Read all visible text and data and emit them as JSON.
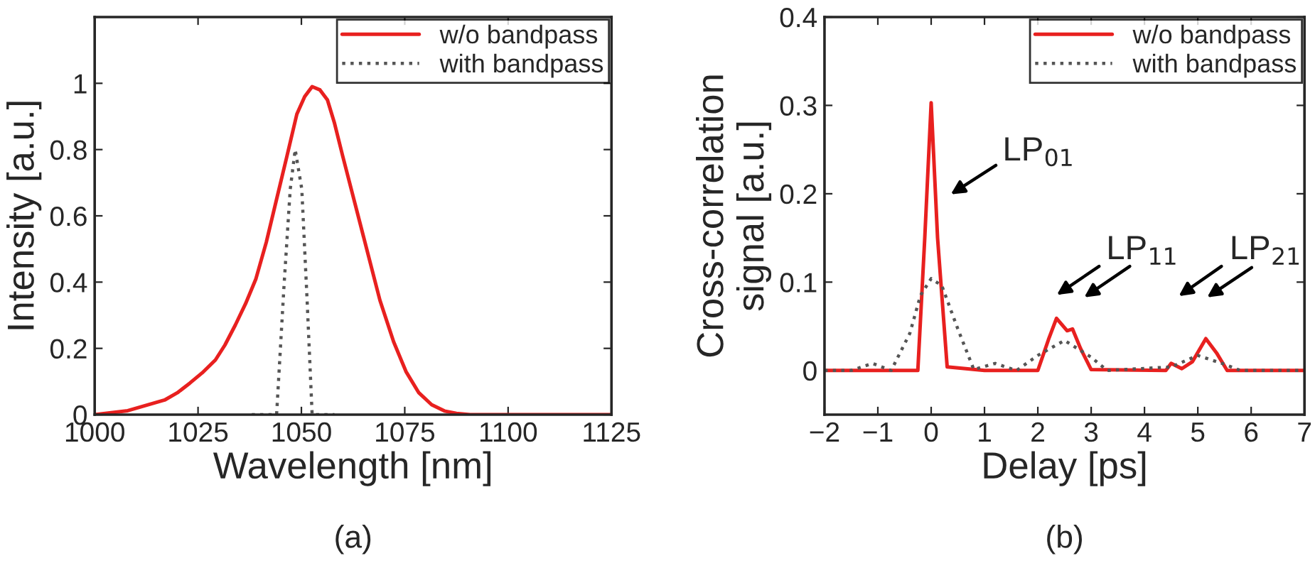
{
  "chart_data": [
    {
      "type": "line",
      "xlabel": "Wavelength [nm]",
      "ylabel": "Intensity [a.u.]",
      "xlim": [
        1000,
        1125
      ],
      "ylim": [
        0,
        1.2
      ],
      "xticks": [
        1000,
        1025,
        1050,
        1075,
        1100,
        1125
      ],
      "yticks": [
        0,
        0.2,
        0.4,
        0.6,
        0.8,
        1
      ],
      "legend": "top right",
      "grid": false,
      "annotations": [
        "(a)"
      ],
      "series": [
        {
          "name": "w/o bandpass",
          "color": "#e8201f",
          "line_style": "solid",
          "x": [
            1000,
            1008,
            1016.9,
            1020,
            1023,
            1026,
            1029.2,
            1031.5,
            1034,
            1036.5,
            1039,
            1041.5,
            1044,
            1046.5,
            1048.9,
            1050.8,
            1052.6,
            1054.5,
            1056.3,
            1058,
            1060,
            1063,
            1066,
            1069,
            1072.3,
            1075.3,
            1078.4,
            1081.5,
            1084.6,
            1087.5,
            1090.8,
            1100,
            1125
          ],
          "values": [
            0,
            0.012,
            0.044,
            0.066,
            0.095,
            0.126,
            0.165,
            0.21,
            0.27,
            0.335,
            0.41,
            0.52,
            0.65,
            0.78,
            0.907,
            0.96,
            0.99,
            0.98,
            0.95,
            0.88,
            0.78,
            0.635,
            0.49,
            0.345,
            0.22,
            0.13,
            0.066,
            0.03,
            0.011,
            0.004,
            0,
            0,
            0
          ]
        },
        {
          "name": "with bandpass",
          "color": "#555555",
          "line_style": "dotted",
          "x": [
            1038,
            1044,
            1045.8,
            1047.3,
            1048.5,
            1050.1,
            1051.4,
            1052.6,
            1058
          ],
          "values": [
            0,
            0,
            0.39,
            0.68,
            0.8,
            0.68,
            0.34,
            0,
            0
          ]
        }
      ]
    },
    {
      "type": "line",
      "xlabel": "Delay [ps]",
      "ylabel": "Cross-correlation\nsignal [a.u.]",
      "xlim": [
        -2,
        7
      ],
      "ylim": [
        -0.05,
        0.4
      ],
      "xticks": [
        {
          "value": -2,
          "label": "−2"
        },
        {
          "value": -1,
          "label": "−1"
        },
        0,
        1,
        2,
        3,
        4,
        5,
        6,
        7
      ],
      "yticks": [
        0,
        0.1,
        0.2,
        0.3,
        0.4
      ],
      "legend": "top right",
      "grid": false,
      "annotations": [
        "LP$_{01}$",
        "LP$_{11}$",
        "LP$_{21}$",
        "(b)"
      ],
      "series": [
        {
          "name": "w/o bandpass",
          "color": "#e8201f",
          "line_style": "solid",
          "x": [
            -2,
            -1,
            -0.25,
            -0.12,
            0,
            0.12,
            0.3,
            1,
            2.0,
            2.2,
            2.35,
            2.55,
            2.65,
            2.8,
            3.0,
            4.4,
            4.5,
            4.7,
            4.9,
            5.15,
            5.35,
            5.55,
            7
          ],
          "values": [
            0,
            0,
            0,
            0.15,
            0.303,
            0.15,
            0.004,
            0,
            0,
            0.035,
            0.059,
            0.045,
            0.047,
            0.025,
            0.001,
            0,
            0.008,
            0.002,
            0.01,
            0.036,
            0.02,
            0,
            0
          ]
        },
        {
          "name": "with bandpass",
          "color": "#555555",
          "line_style": "dotted",
          "x": [
            -2,
            -1.5,
            -1.1,
            -0.75,
            -0.4,
            -0.2,
            0,
            0.2,
            0.5,
            0.8,
            1.2,
            1.6,
            2.0,
            2.5,
            3.0,
            3.3,
            4.5,
            5.0,
            5.5,
            5.8,
            7
          ],
          "values": [
            0,
            0,
            0.008,
            0,
            0.042,
            0.085,
            0.104,
            0.096,
            0.047,
            0.001,
            0.008,
            0,
            0.017,
            0.034,
            0.015,
            0,
            0.004,
            0.017,
            0.007,
            0,
            0
          ]
        }
      ]
    }
  ]
}
